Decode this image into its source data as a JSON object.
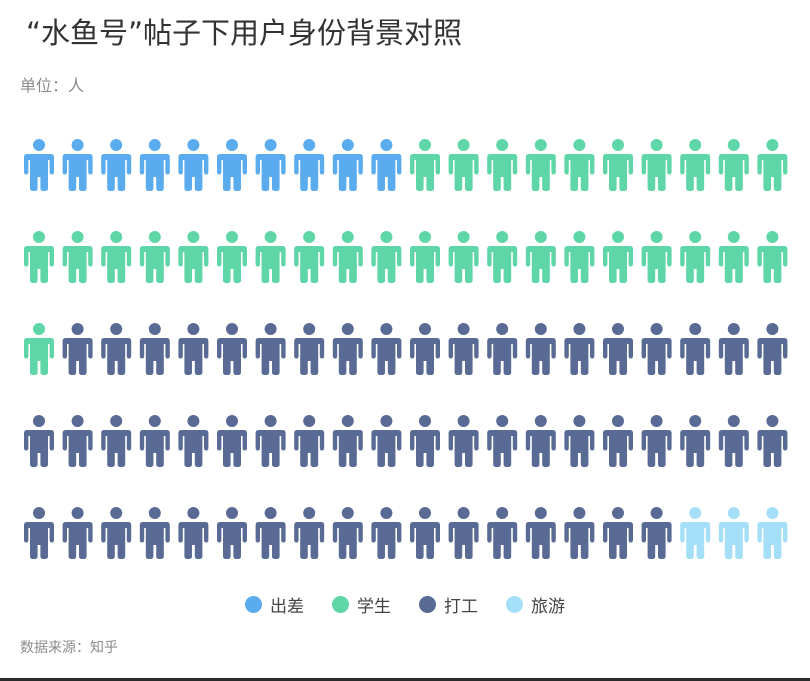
{
  "title": "“水鱼号”帖子下用户身份背景对照",
  "unit_label": "单位：人",
  "source_label": "数据来源：知乎",
  "chart_data": {
    "type": "pictogram",
    "unit": "人",
    "total": 100,
    "rows": 5,
    "per_row": 20,
    "series": [
      {
        "name": "出差",
        "value": 10,
        "color": "#5aacee"
      },
      {
        "name": "学生",
        "value": 31,
        "color": "#5fd6a8"
      },
      {
        "name": "打工",
        "value": 56,
        "color": "#596b94"
      },
      {
        "name": "旅游",
        "value": 3,
        "color": "#a5dff7"
      }
    ],
    "legend_position": "bottom-center"
  }
}
